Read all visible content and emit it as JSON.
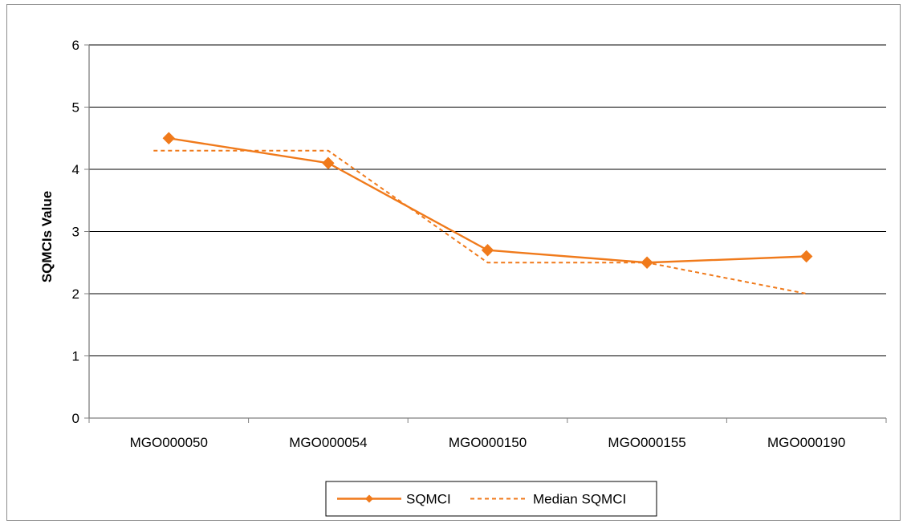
{
  "chart_data": {
    "type": "line",
    "categories": [
      "MGO000050",
      "MGO000054",
      "MGO000150",
      "MGO000155",
      "MGO000190"
    ],
    "series": [
      {
        "name": "SQMCI",
        "values": [
          4.5,
          4.1,
          2.7,
          2.5,
          2.6
        ],
        "style": "solid",
        "marker": "diamond"
      },
      {
        "name": "Median SQMCI",
        "values": [
          4.3,
          4.3,
          2.5,
          2.5,
          2.0
        ],
        "style": "dashed",
        "marker": "none"
      }
    ],
    "title": "",
    "xlabel": "",
    "ylabel": "SQMCIs Value",
    "ylim": [
      0,
      6
    ],
    "yticks": [
      0,
      1,
      2,
      3,
      4,
      5,
      6
    ],
    "grid": "horizontal",
    "legend": "bottom-center",
    "colors": {
      "series": "#f07a1b",
      "grid": "#000000",
      "axis": "#808080",
      "frame": "#8c8c8c"
    }
  }
}
